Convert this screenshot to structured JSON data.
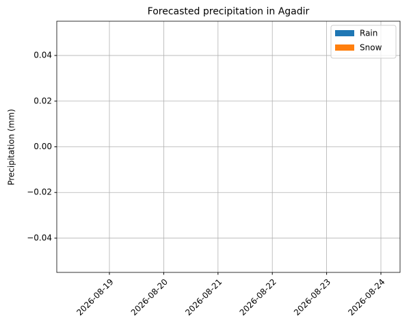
{
  "chart_data": {
    "type": "bar",
    "title": "Forecasted precipitation in Agadir",
    "y_label": "Precipitation (mm)",
    "categories": [
      "2026-08-19",
      "2026-08-20",
      "2026-08-21",
      "2026-08-22",
      "2026-08-23",
      "2026-08-24"
    ],
    "series": [
      {
        "name": "Rain",
        "color": "#1f77b4",
        "values": [
          0,
          0,
          0,
          0,
          0,
          0
        ]
      },
      {
        "name": "Snow",
        "color": "#ff7f0e",
        "values": [
          0,
          0,
          0,
          0,
          0,
          0
        ]
      }
    ],
    "ylim": [
      -0.055,
      0.055
    ],
    "yticks": [
      {
        "value": -0.04,
        "label": "−0.04"
      },
      {
        "value": -0.02,
        "label": "−0.02"
      },
      {
        "value": 0,
        "label": "0.00"
      },
      0.02,
      0.04
    ],
    "grid": true,
    "legend": "upper right"
  }
}
